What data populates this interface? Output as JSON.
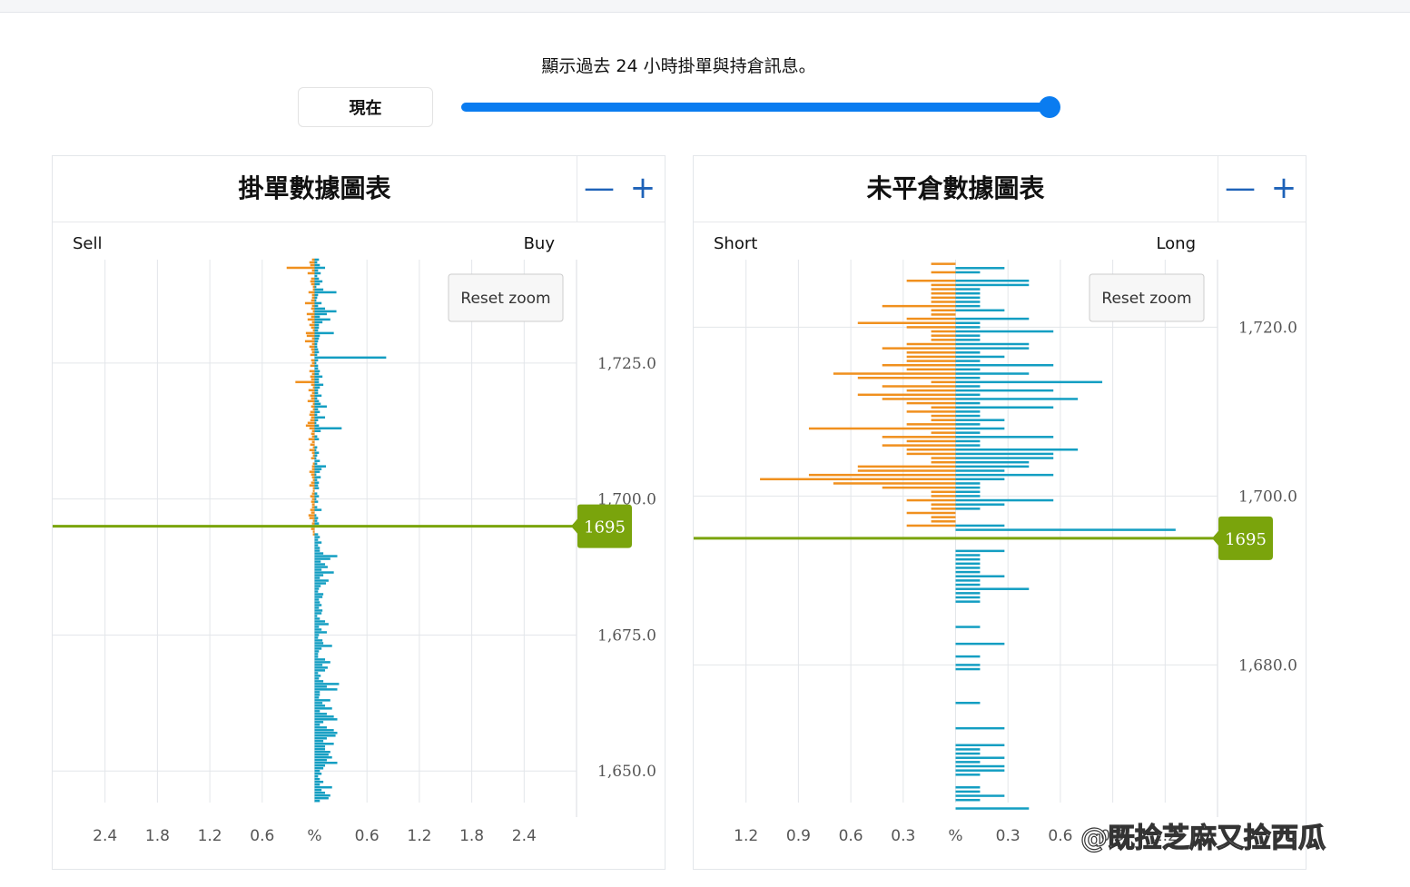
{
  "header": {
    "caption": "顯示過去 24 小時掛單與持倉訊息。",
    "now_button": "現在",
    "slider_value": 1.0
  },
  "orders_panel": {
    "title": "掛單數據圖表",
    "zoom_out": "—",
    "zoom_in": "+",
    "reset_zoom": "Reset zoom"
  },
  "positions_panel": {
    "title": "未平倉數據圖表",
    "zoom_out": "—",
    "zoom_in": "+",
    "reset_zoom": "Reset zoom"
  },
  "watermark": "@既捡芝麻又捡西瓜",
  "colors": {
    "sell_short": "#f0901e",
    "buy_long": "#139ec2",
    "price_line": "#7aa40c",
    "price_tag": "#7aa40c"
  },
  "chart_data": [
    {
      "type": "bar",
      "orientation": "horizontal-butterfly",
      "title": "掛單數據圖表",
      "left_label": "Sell",
      "right_label": "Buy",
      "xlabel": "%",
      "x_ticks": [
        "2.4",
        "1.8",
        "1.2",
        "0.6",
        "%",
        "0.6",
        "1.2",
        "1.8",
        "2.4"
      ],
      "x_range": [
        -3.0,
        3.0
      ],
      "y_ticks": [
        "1,725.0",
        "1,700.0",
        "1,675.0",
        "1,650.0"
      ],
      "y_tick_values": [
        1725,
        1700,
        1675,
        1650
      ],
      "y_range": [
        1644.2,
        1744.0
      ],
      "current_price": 1695,
      "current_price_label": "1695",
      "price_step": 0.5,
      "price_start": 1744,
      "series": [
        {
          "name": "Sell",
          "values": [
            0.03,
            0.06,
            0.05,
            0.32,
            0.03,
            0.08,
            0.0,
            0.04,
            0.05,
            0.04,
            0.02,
            0.02,
            0.07,
            0.03,
            0.03,
            0.04,
            0.11,
            0.03,
            0.04,
            0.02,
            0.09,
            0.04,
            0.08,
            0.03,
            0.06,
            0.04,
            0.02,
            0.1,
            0.09,
            0.03,
            0.11,
            0.03,
            0.06,
            0.04,
            0.03,
            0.05,
            0.0,
            0.04,
            0.03,
            0.05,
            0.0,
            0.06,
            0.03,
            0.05,
            0.04,
            0.22,
            0.04,
            0.02,
            0.07,
            0.03,
            0.05,
            0.04,
            0.08,
            0.02,
            0.04,
            0.02,
            0.05,
            0.06,
            0.04,
            0.05,
            0.08,
            0.1,
            0.06,
            0.03,
            0.04,
            0.03,
            0.07,
            0.03,
            0.05,
            0.02,
            0.06,
            0.03,
            0.02,
            0.04,
            0.0,
            0.02,
            0.03,
            0.03,
            0.06,
            0.04,
            0.03,
            0.02,
            0.04,
            0.06,
            0.02,
            0.02,
            0.03,
            0.05,
            0.03,
            0.04,
            0.03,
            0.03,
            0.05,
            0.04,
            0.07,
            0.06,
            0.02,
            0.03,
            0.04,
            0.04,
            0.02,
            0.02,
            0.0,
            0.0,
            0.0,
            0.0,
            0.0,
            0.0,
            0.0,
            0.0,
            0.0,
            0.0,
            0.0,
            0.0,
            0.0,
            0.0,
            0.0,
            0.0,
            0.0,
            0.0,
            0.0,
            0.0,
            0.0,
            0.0,
            0.0,
            0.0,
            0.0,
            0.0,
            0.0,
            0.0,
            0.0,
            0.0,
            0.0,
            0.0,
            0.0,
            0.0,
            0.0,
            0.0,
            0.0,
            0.0,
            0.0,
            0.0,
            0.0,
            0.0,
            0.0,
            0.0,
            0.0,
            0.0,
            0.0,
            0.0,
            0.0,
            0.0,
            0.0,
            0.0,
            0.0,
            0.0,
            0.0,
            0.0,
            0.0,
            0.0,
            0.0,
            0.0,
            0.0,
            0.0,
            0.0,
            0.0,
            0.0,
            0.0,
            0.0,
            0.0,
            0.0,
            0.0,
            0.0,
            0.0,
            0.0,
            0.0,
            0.0,
            0.0,
            0.0,
            0.0,
            0.0,
            0.0,
            0.0,
            0.0,
            0.0,
            0.0,
            0.0,
            0.0,
            0.0,
            0.0,
            0.0,
            0.0,
            0.0,
            0.0,
            0.0,
            0.0,
            0.0,
            0.0,
            0.0,
            0.0
          ]
        },
        {
          "name": "Buy",
          "values": [
            0.05,
            0.03,
            0.06,
            0.12,
            0.04,
            0.07,
            0.03,
            0.05,
            0.09,
            0.06,
            0.02,
            0.1,
            0.25,
            0.04,
            0.03,
            0.02,
            0.08,
            0.04,
            0.12,
            0.25,
            0.14,
            0.06,
            0.18,
            0.09,
            0.05,
            0.05,
            0.04,
            0.22,
            0.06,
            0.05,
            0.04,
            0.03,
            0.03,
            0.04,
            0.05,
            0.03,
            0.82,
            0.04,
            0.02,
            0.04,
            0.04,
            0.06,
            0.05,
            0.09,
            0.05,
            0.05,
            0.1,
            0.06,
            0.04,
            0.04,
            0.08,
            0.03,
            0.05,
            0.07,
            0.14,
            0.04,
            0.06,
            0.03,
            0.12,
            0.04,
            0.02,
            0.05,
            0.31,
            0.07,
            0.0,
            0.03,
            0.05,
            0.0,
            0.0,
            0.03,
            0.02,
            0.05,
            0.03,
            0.02,
            0.06,
            0.03,
            0.13,
            0.08,
            0.06,
            0.02,
            0.07,
            0.03,
            0.05,
            0.04,
            0.05,
            0.0,
            0.03,
            0.05,
            0.02,
            0.04,
            0.0,
            0.03,
            0.08,
            0.0,
            0.02,
            0.04,
            0.03,
            0.05,
            0.0,
            0.0,
            0.0,
            0.04,
            0.06,
            0.04,
            0.08,
            0.04,
            0.06,
            0.06,
            0.1,
            0.26,
            0.18,
            0.07,
            0.12,
            0.15,
            0.08,
            0.22,
            0.1,
            0.06,
            0.16,
            0.13,
            0.07,
            0.05,
            0.04,
            0.1,
            0.09,
            0.05,
            0.06,
            0.08,
            0.05,
            0.09,
            0.08,
            0.03,
            0.06,
            0.12,
            0.16,
            0.05,
            0.08,
            0.14,
            0.05,
            0.04,
            0.09,
            0.1,
            0.2,
            0.08,
            0.05,
            0.04,
            0.04,
            0.12,
            0.18,
            0.09,
            0.15,
            0.12,
            0.04,
            0.07,
            0.05,
            0.1,
            0.28,
            0.14,
            0.26,
            0.06,
            0.06,
            0.05,
            0.18,
            0.09,
            0.12,
            0.2,
            0.06,
            0.14,
            0.22,
            0.26,
            0.1,
            0.06,
            0.14,
            0.22,
            0.26,
            0.24,
            0.14,
            0.1,
            0.22,
            0.12,
            0.12,
            0.18,
            0.16,
            0.2,
            0.14,
            0.26,
            0.12,
            0.1,
            0.06,
            0.08,
            0.04,
            0.06,
            0.1,
            0.06,
            0.2,
            0.08,
            0.12,
            0.18,
            0.16,
            0.06,
            0.18,
            0.18
          ]
        }
      ]
    },
    {
      "type": "bar",
      "orientation": "horizontal-butterfly",
      "title": "未平倉數據圖表",
      "left_label": "Short",
      "right_label": "Long",
      "xlabel": "%",
      "x_ticks": [
        "1.2",
        "0.9",
        "0.6",
        "0.3",
        "%",
        "0.3",
        "0.6",
        "0.9",
        "1.2"
      ],
      "x_range": [
        -1.5,
        1.5
      ],
      "y_ticks": [
        "1,720.0",
        "1,700.0",
        "1,680.0"
      ],
      "y_tick_values": [
        1720,
        1700,
        1680
      ],
      "y_range": [
        1663.7,
        1728.0
      ],
      "current_price": 1695,
      "current_price_label": "1695",
      "price_step": 0.5,
      "price_start": 1727.5,
      "series": [
        {
          "name": "Short",
          "values": [
            0.14,
            0.0,
            0.14,
            0.0,
            0.28,
            0.14,
            0.14,
            0.14,
            0.14,
            0.14,
            0.42,
            0.14,
            0.14,
            0.28,
            0.56,
            0.28,
            0.14,
            0.14,
            0.14,
            0.28,
            0.42,
            0.28,
            0.28,
            0.28,
            0.42,
            0.28,
            0.7,
            0.56,
            0.14,
            0.42,
            0.28,
            0.56,
            0.42,
            0.28,
            0.14,
            0.28,
            0.14,
            0.14,
            0.28,
            0.84,
            0.14,
            0.42,
            0.28,
            0.42,
            0.28,
            0.28,
            0.14,
            0.14,
            0.56,
            0.56,
            0.84,
            1.12,
            0.7,
            0.42,
            0.14,
            0.14,
            0.28,
            0.14,
            0.14,
            0.28,
            0.14,
            0.14,
            0.28,
            0.0,
            0.0,
            0.0,
            0.0,
            0.0,
            0.0,
            0.0,
            0.0,
            0.0,
            0.0,
            0.0,
            0.0,
            0.0,
            0.0,
            0.0,
            0.0,
            0.0,
            0.0,
            0.0,
            0.0,
            0.0,
            0.0,
            0.0,
            0.0,
            0.0,
            0.0,
            0.0,
            0.0,
            0.0,
            0.0,
            0.0,
            0.0,
            0.0,
            0.0,
            0.0,
            0.0,
            0.0,
            0.0,
            0.0,
            0.0,
            0.0,
            0.0,
            0.0,
            0.0,
            0.0,
            0.0,
            0.0,
            0.0,
            0.0,
            0.0,
            0.0,
            0.0,
            0.0,
            0.0,
            0.0,
            0.0,
            0.0,
            0.0,
            0.0,
            0.0,
            0.0,
            0.0,
            0.0,
            0.0,
            0.0,
            0.0,
            0.0
          ]
        },
        {
          "name": "Long",
          "values": [
            0.0,
            0.28,
            0.14,
            0.0,
            0.42,
            0.42,
            0.14,
            0.14,
            0.14,
            0.14,
            0.14,
            0.28,
            0.0,
            0.42,
            0.14,
            0.14,
            0.56,
            0.14,
            0.14,
            0.42,
            0.42,
            0.14,
            0.28,
            0.14,
            0.56,
            0.14,
            0.42,
            0.14,
            0.84,
            0.14,
            0.56,
            0.14,
            0.7,
            0.14,
            0.56,
            0.14,
            0.14,
            0.28,
            0.14,
            0.28,
            0.14,
            0.56,
            0.14,
            0.14,
            0.7,
            0.56,
            0.56,
            0.42,
            0.42,
            0.28,
            0.56,
            0.28,
            0.14,
            0.14,
            0.14,
            0.14,
            0.56,
            0.28,
            0.14,
            0.0,
            0.0,
            0.0,
            0.28,
            1.26,
            0.0,
            0.0,
            0.0,
            0.0,
            0.28,
            0.14,
            0.14,
            0.14,
            0.14,
            0.14,
            0.28,
            0.14,
            0.14,
            0.42,
            0.14,
            0.14,
            0.14,
            0.0,
            0.0,
            0.0,
            0.0,
            0.0,
            0.14,
            0.0,
            0.0,
            0.0,
            0.28,
            0.0,
            0.0,
            0.14,
            0.0,
            0.14,
            0.14,
            0.0,
            0.0,
            0.0,
            0.0,
            0.0,
            0.0,
            0.0,
            0.14,
            0.0,
            0.0,
            0.0,
            0.0,
            0.0,
            0.28,
            0.0,
            0.0,
            0.0,
            0.28,
            0.14,
            0.14,
            0.28,
            0.14,
            0.28,
            0.28,
            0.14,
            0.0,
            0.0,
            0.14,
            0.14,
            0.28,
            0.14,
            0.0,
            0.42
          ]
        }
      ]
    }
  ]
}
